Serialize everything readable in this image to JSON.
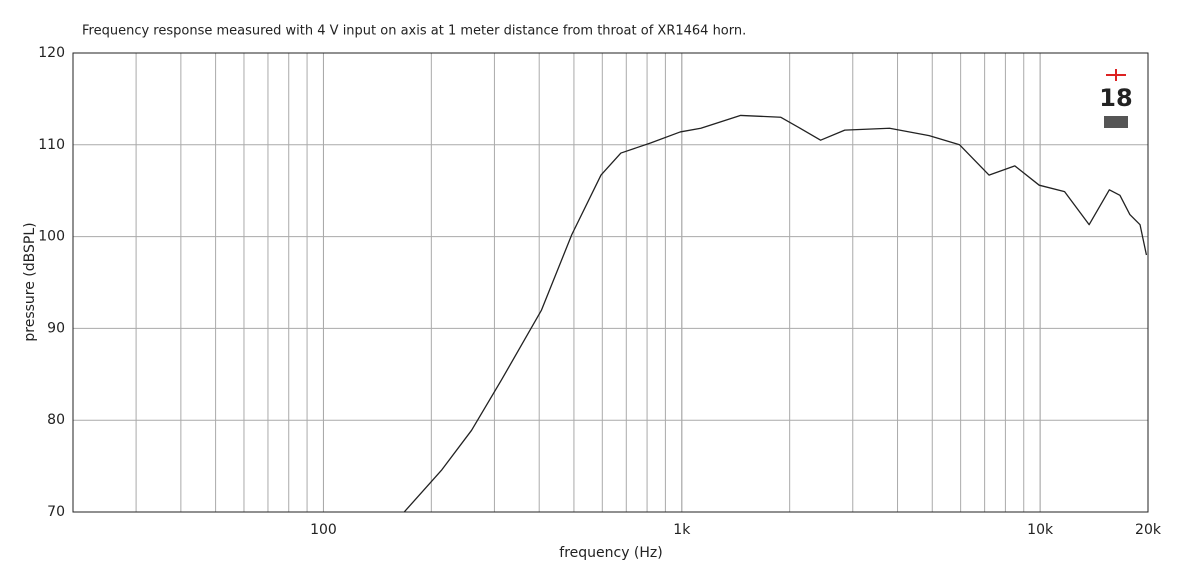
{
  "chart_data": {
    "type": "line",
    "title": "Frequency response measured with 4 V input on axis at 1 meter distance from throat of XR1464 horn.",
    "xlabel": "frequency (Hz)",
    "ylabel": "pressure (dBSPL)",
    "logo": "18",
    "xscale": "log",
    "grid": true,
    "xlim": [
      20,
      20000
    ],
    "ylim": [
      70,
      120
    ],
    "xticks": [
      100,
      {
        "value": 1000,
        "label": "1k"
      },
      {
        "value": 10000,
        "label": "10k"
      },
      {
        "value": 20000,
        "label": "20k"
      }
    ],
    "yticks": [
      70,
      80,
      90,
      100,
      110,
      120
    ],
    "x": [
      168,
      214,
      259,
      314,
      406,
      493,
      595,
      676,
      818,
      990,
      1130,
      1460,
      1890,
      2140,
      2440,
      2850,
      3800,
      4900,
      5960,
      7200,
      8500,
      9940,
      11700,
      13700,
      15600,
      16700,
      17800,
      19000,
      19800
    ],
    "series": [
      {
        "color": "#222222",
        "values": [
          70,
          74.6,
          78.9,
          84.4,
          92,
          100.2,
          106.7,
          109.1,
          110.2,
          111.4,
          111.8,
          113.2,
          113,
          111.8,
          110.5,
          111.6,
          111.8,
          111,
          110,
          106.7,
          107.7,
          105.6,
          104.9,
          101.3,
          105.1,
          104.5,
          102.4,
          101.3,
          98
        ]
      }
    ]
  }
}
